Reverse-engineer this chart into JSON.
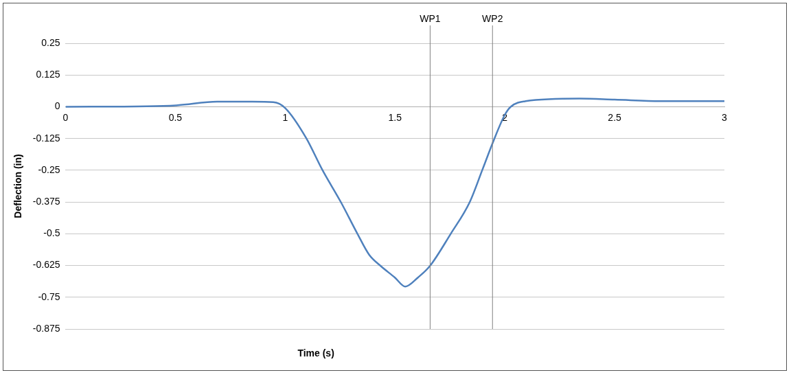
{
  "chart_data": {
    "type": "line",
    "xlabel": "Time (s)",
    "ylabel": "Deflection (in)",
    "x": [
      0,
      0.37,
      0.51,
      0.69,
      0.85,
      0.946,
      1.0,
      1.095,
      1.169,
      1.254,
      1.329,
      1.382,
      1.435,
      1.499,
      1.547,
      1.605,
      1.659,
      1.754,
      1.84,
      1.898,
      1.946,
      2.0,
      2.027,
      2.095,
      2.34,
      2.5,
      2.71,
      3.0
    ],
    "series": [
      {
        "color": "#4f81bd",
        "values": [
          0,
          0.002,
          0.006,
          0.02,
          0.02,
          0.018,
          -0.005,
          -0.122,
          -0.248,
          -0.376,
          -0.5,
          -0.582,
          -0.627,
          -0.672,
          -0.708,
          -0.672,
          -0.627,
          -0.5,
          -0.376,
          -0.248,
          -0.14,
          -0.032,
          0,
          0.022,
          0.032,
          0.028,
          0.022,
          0.022
        ]
      }
    ],
    "xlim": [
      0,
      3
    ],
    "xticks": [
      0,
      0.5,
      1,
      1.5,
      2,
      2.5,
      3
    ],
    "ylim": [
      -0.875,
      0.25
    ],
    "yticks": [
      0.25,
      0.125,
      0,
      -0.125,
      -0.25,
      -0.375,
      -0.5,
      -0.625,
      -0.75,
      -0.875
    ],
    "grid": "y",
    "legend": false,
    "marker": "none",
    "line_style": "solid",
    "ref_lines": [
      {
        "axis": "x",
        "value": 1.66,
        "label": "WP1",
        "color": "#808080"
      },
      {
        "axis": "x",
        "value": 1.944,
        "label": "WP2",
        "color": "#808080"
      }
    ]
  }
}
